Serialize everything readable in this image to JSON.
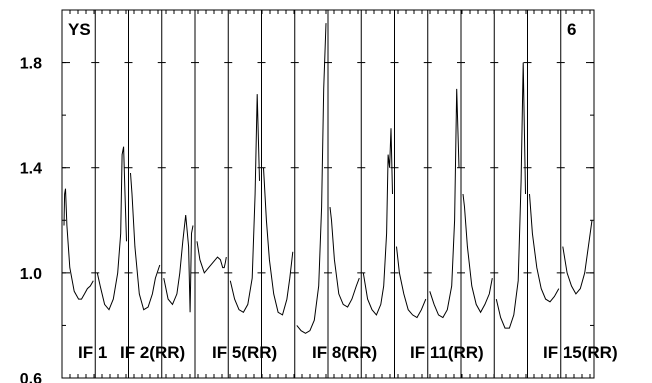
{
  "chart_data": {
    "type": "line",
    "title": "",
    "xlabel": "",
    "ylabel": "",
    "ylim": [
      0.6,
      2.0
    ],
    "yticks": [
      0.6,
      1.0,
      1.4,
      1.8
    ],
    "ytick_labels": [
      "0.6",
      "1.0",
      "1.4",
      "1.8"
    ],
    "grid": "vertical-lines",
    "annotations": {
      "top_left": "YS",
      "top_right": "6"
    },
    "panel_labels": [
      "IF 1",
      "IF 2(RR)",
      "IF 5(RR)",
      "IF 8(RR)",
      "IF 11(RR)",
      "IF 15(RR)"
    ],
    "series": [
      {
        "panel": 1,
        "x": [
          0.0,
          0.02,
          0.05,
          0.1,
          0.2,
          0.35,
          0.5,
          0.6,
          0.7,
          0.8,
          0.9,
          1.0
        ],
        "y": [
          1.18,
          1.3,
          1.32,
          1.18,
          1.02,
          0.93,
          0.9,
          0.9,
          0.92,
          0.94,
          0.95,
          0.97
        ]
      },
      {
        "panel": 2,
        "x": [
          0.0,
          0.1,
          0.25,
          0.4,
          0.55,
          0.7,
          0.8,
          0.85,
          0.9,
          0.95,
          1.0
        ],
        "y": [
          1.0,
          0.95,
          0.88,
          0.86,
          0.9,
          1.0,
          1.15,
          1.45,
          1.48,
          1.3,
          1.12
        ]
      },
      {
        "panel": 3,
        "x": [
          0.0,
          0.05,
          0.15,
          0.3,
          0.45,
          0.6,
          0.75,
          0.85,
          1.0
        ],
        "y": [
          1.38,
          1.3,
          1.1,
          0.92,
          0.86,
          0.87,
          0.92,
          0.98,
          1.03
        ]
      },
      {
        "panel": 4,
        "x": [
          0.0,
          0.15,
          0.3,
          0.45,
          0.55,
          0.65,
          0.75,
          0.85,
          0.9,
          0.95,
          1.0
        ],
        "y": [
          0.98,
          0.9,
          0.88,
          0.92,
          1.0,
          1.12,
          1.22,
          1.1,
          0.85,
          1.15,
          1.18
        ]
      },
      {
        "panel": 5,
        "x": [
          0.0,
          0.1,
          0.25,
          0.4,
          0.55,
          0.7,
          0.8,
          0.88,
          0.93,
          0.97,
          1.0
        ],
        "y": [
          1.12,
          1.05,
          1.0,
          1.02,
          1.04,
          1.06,
          1.05,
          1.02,
          1.02,
          1.04,
          1.06
        ]
      },
      {
        "panel": 6,
        "x": [
          0.0,
          0.15,
          0.3,
          0.45,
          0.6,
          0.75,
          0.85,
          0.92,
          1.0
        ],
        "y": [
          0.97,
          0.9,
          0.86,
          0.85,
          0.88,
          0.98,
          1.3,
          1.68,
          1.35
        ]
      },
      {
        "panel": 7,
        "x": [
          0.0,
          0.1,
          0.2,
          0.35,
          0.5,
          0.65,
          0.8,
          0.9,
          1.0
        ],
        "y": [
          1.4,
          1.2,
          1.05,
          0.92,
          0.85,
          0.84,
          0.9,
          0.98,
          1.08
        ]
      },
      {
        "panel": 8,
        "x": [
          0.0,
          0.15,
          0.3,
          0.45,
          0.6,
          0.75,
          0.85,
          0.92,
          1.0
        ],
        "y": [
          0.8,
          0.78,
          0.77,
          0.78,
          0.82,
          0.95,
          1.25,
          1.7,
          1.95
        ]
      },
      {
        "panel": 9,
        "x": [
          0.0,
          0.05,
          0.15,
          0.3,
          0.45,
          0.6,
          0.75,
          0.9,
          1.0
        ],
        "y": [
          1.25,
          1.2,
          1.05,
          0.92,
          0.88,
          0.87,
          0.9,
          0.95,
          0.98
        ]
      },
      {
        "panel": 10,
        "x": [
          0.0,
          0.15,
          0.3,
          0.45,
          0.6,
          0.7,
          0.8,
          0.85,
          0.9,
          0.95,
          1.0
        ],
        "y": [
          1.0,
          0.9,
          0.86,
          0.84,
          0.88,
          0.95,
          1.15,
          1.45,
          1.4,
          1.55,
          1.3
        ]
      },
      {
        "panel": 11,
        "x": [
          0.0,
          0.1,
          0.25,
          0.4,
          0.55,
          0.7,
          0.85,
          1.0
        ],
        "y": [
          1.1,
          1.0,
          0.92,
          0.86,
          0.84,
          0.83,
          0.86,
          0.9
        ]
      },
      {
        "panel": 12,
        "x": [
          0.0,
          0.15,
          0.3,
          0.45,
          0.6,
          0.75,
          0.85,
          0.92,
          1.0
        ],
        "y": [
          0.93,
          0.88,
          0.84,
          0.83,
          0.86,
          0.95,
          1.2,
          1.7,
          1.4
        ]
      },
      {
        "panel": 13,
        "x": [
          0.0,
          0.05,
          0.15,
          0.3,
          0.45,
          0.6,
          0.75,
          0.9,
          1.0
        ],
        "y": [
          1.3,
          1.25,
          1.1,
          0.95,
          0.88,
          0.85,
          0.88,
          0.92,
          0.98
        ]
      },
      {
        "panel": 14,
        "x": [
          0.0,
          0.15,
          0.3,
          0.45,
          0.6,
          0.75,
          0.85,
          0.92,
          1.0
        ],
        "y": [
          0.9,
          0.83,
          0.79,
          0.79,
          0.84,
          0.97,
          1.35,
          1.8,
          1.3
        ]
      },
      {
        "panel": 15,
        "x": [
          0.0,
          0.1,
          0.25,
          0.4,
          0.55,
          0.7,
          0.85,
          1.0
        ],
        "y": [
          1.3,
          1.15,
          1.02,
          0.94,
          0.9,
          0.89,
          0.91,
          0.94
        ]
      },
      {
        "panel": 16,
        "x": [
          0.0,
          0.15,
          0.3,
          0.45,
          0.6,
          0.75,
          0.9,
          1.0
        ],
        "y": [
          1.1,
          1.0,
          0.95,
          0.92,
          0.94,
          1.0,
          1.12,
          1.2
        ]
      }
    ]
  }
}
